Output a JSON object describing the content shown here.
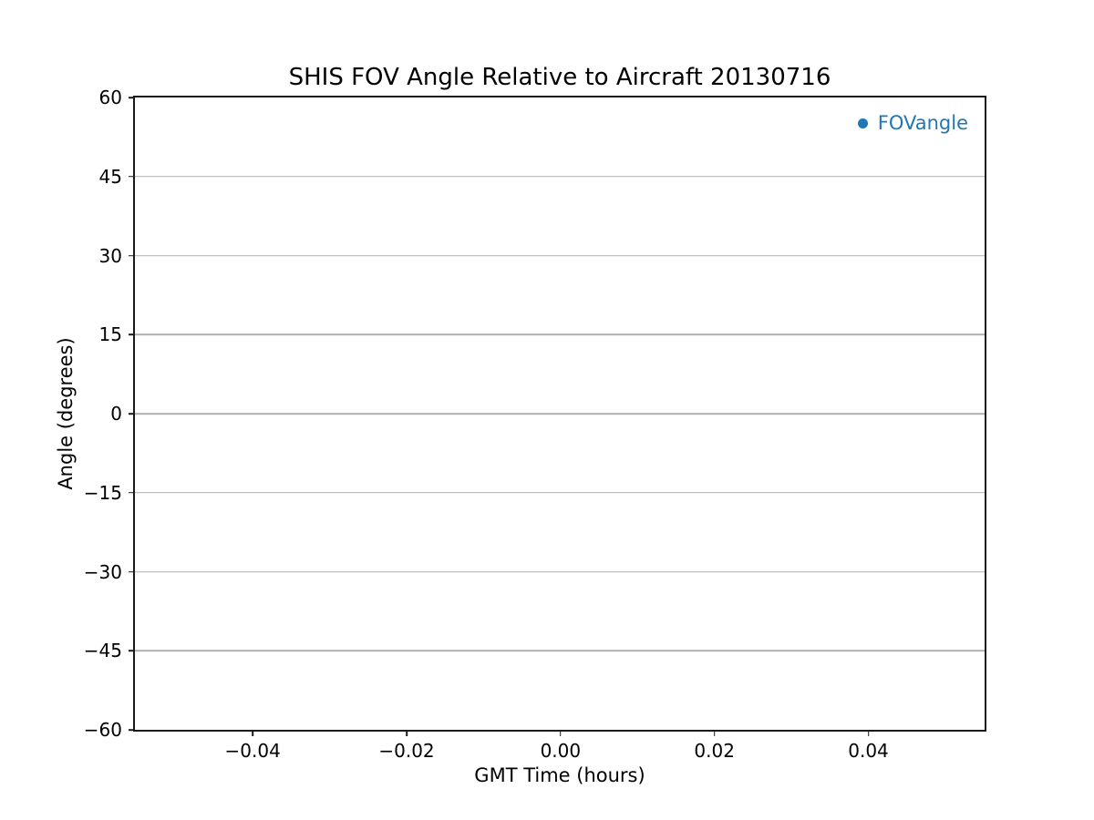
{
  "chart_data": {
    "type": "scatter",
    "title": "SHIS FOV Angle Relative to Aircraft 20130716",
    "xlabel": "GMT Time (hours)",
    "ylabel": "Angle (degrees)",
    "xlim": [
      -0.0553,
      0.0551
    ],
    "ylim": [
      -60,
      60
    ],
    "xticks": {
      "values": [
        -0.04,
        -0.02,
        0.0,
        0.02,
        0.04
      ],
      "labels": [
        "−0.04",
        "−0.02",
        "0.00",
        "0.02",
        "0.04"
      ]
    },
    "yticks": {
      "values": [
        60,
        45,
        30,
        15,
        0,
        -15,
        -30,
        -45,
        -60
      ],
      "labels": [
        "60",
        "45",
        "30",
        "15",
        "0",
        "−15",
        "−30",
        "−45",
        "−60"
      ]
    },
    "grid": {
      "horizontal": true,
      "vertical": false,
      "color": "#b0b0b0"
    },
    "legend": {
      "position": "upper-right",
      "entries": [
        {
          "label": "FOVangle",
          "marker": "circle",
          "color": "#1f77b4"
        }
      ]
    },
    "series": [
      {
        "name": "FOVangle",
        "color": "#1f77b4",
        "marker": "circle",
        "points": []
      }
    ],
    "colors": {
      "accent_blue": "#1f77b4",
      "axis": "#1a1a1a",
      "text": "#000000",
      "background": "#ffffff"
    }
  }
}
